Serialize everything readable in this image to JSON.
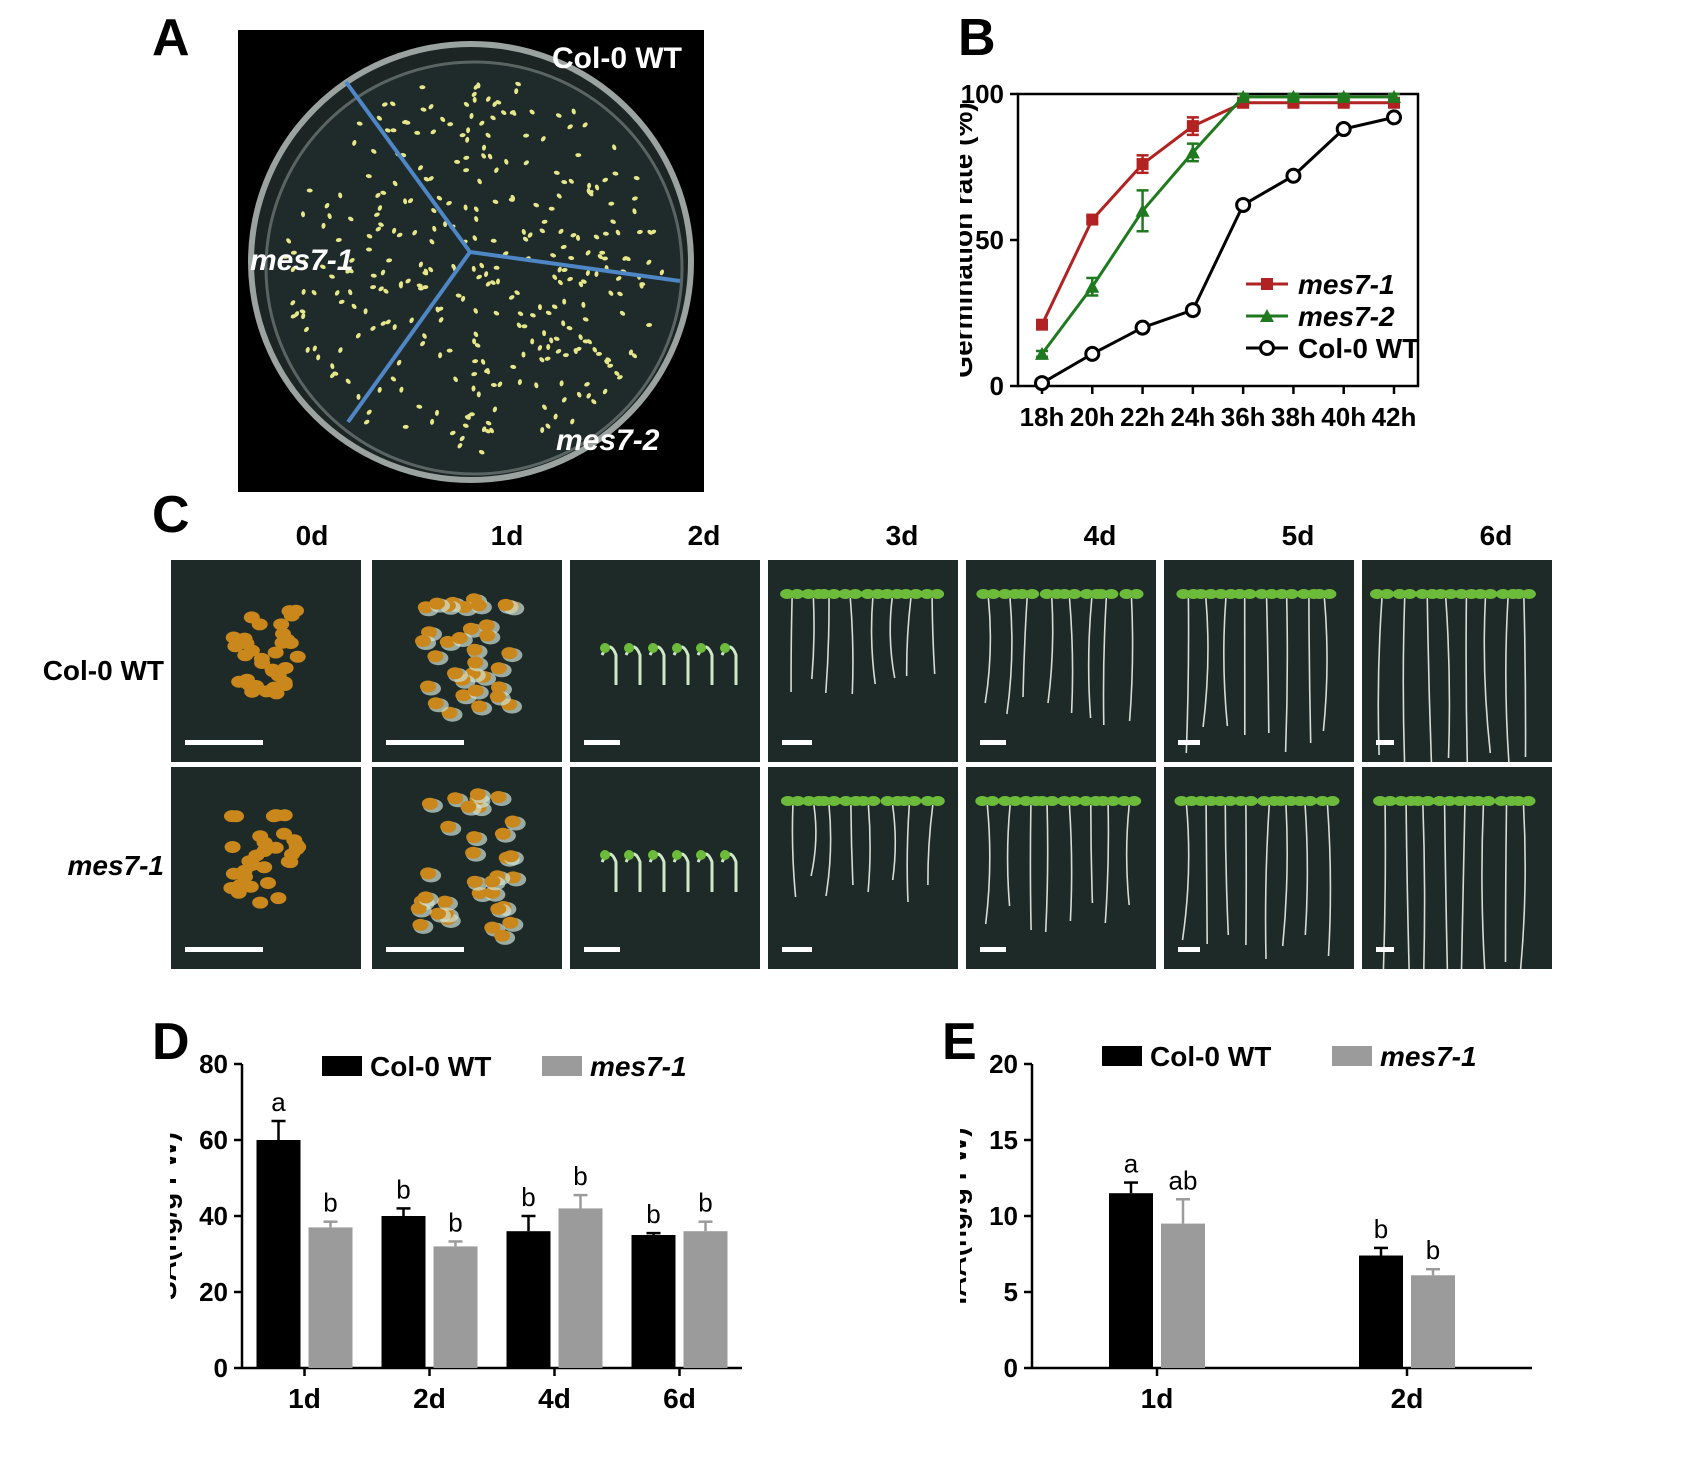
{
  "panels": {
    "a": "A",
    "b": "B",
    "c": "C",
    "d": "D",
    "e": "E"
  },
  "panel_a": {
    "labels": {
      "wt": "Col-0 WT",
      "m1": "mes7-1",
      "m2": "mes7-2"
    },
    "colors": {
      "background": "#000000",
      "plate": "#1f2a2a",
      "divider": "#4f86c6",
      "seedling": "#e6e68a"
    }
  },
  "panel_c": {
    "columns": [
      "0d",
      "1d",
      "2d",
      "3d",
      "4d",
      "5d",
      "6d"
    ],
    "rows": [
      "Col-0 WT",
      "mes7-1"
    ],
    "colors": {
      "background": "#1d2a28",
      "seed": "#c9871c",
      "cotyledon": "#6dbb3a",
      "root": "#d8dcd4",
      "scale_bar": "#ffffff"
    }
  },
  "chart_data": [
    {
      "panel": "B",
      "type": "line",
      "categories": [
        "18h",
        "20h",
        "22h",
        "24h",
        "36h",
        "38h",
        "40h",
        "42h"
      ],
      "ylabel": "Germination rate (%)",
      "ylim": [
        0,
        100
      ],
      "yticks": [
        "0",
        "50",
        "100"
      ],
      "legend_position": "bottom-right",
      "series": [
        {
          "name": "mes7-1",
          "color": "#b22222",
          "marker": "square",
          "values": [
            21,
            57,
            76,
            89,
            97,
            97,
            97,
            97
          ],
          "errors": [
            1,
            1,
            3,
            3,
            1,
            1,
            1,
            1
          ]
        },
        {
          "name": "mes7-2",
          "color": "#1f7a1f",
          "marker": "triangle",
          "values": [
            11,
            34,
            60,
            80,
            99,
            99,
            99,
            99
          ],
          "errors": [
            1,
            3,
            7,
            3,
            1,
            1,
            1,
            1
          ]
        },
        {
          "name": "Col-0 WT",
          "color": "#000000",
          "marker": "circle",
          "values": [
            1,
            11,
            20,
            26,
            62,
            72,
            88,
            92
          ],
          "errors": [
            0,
            1,
            1,
            1,
            1,
            1,
            1,
            1
          ]
        }
      ]
    },
    {
      "panel": "D",
      "type": "bar",
      "categories": [
        "1d",
        "2d",
        "4d",
        "6d"
      ],
      "ylabel": "SA(ng/g FW)",
      "ylim": [
        0,
        80
      ],
      "yticks": [
        "0",
        "20",
        "40",
        "60",
        "80"
      ],
      "legend_position": "top",
      "series": [
        {
          "name": "Col-0 WT",
          "color": "#000000",
          "values": [
            60,
            40,
            36,
            35
          ],
          "errors": [
            5,
            2,
            4,
            0.5
          ],
          "letters": [
            "a",
            "b",
            "b",
            "b"
          ]
        },
        {
          "name": "mes7-1",
          "color": "#9b9b9b",
          "values": [
            37,
            32,
            42,
            36
          ],
          "errors": [
            1.5,
            1.3,
            3.5,
            2.5
          ],
          "letters": [
            "b",
            "b",
            "b",
            "b"
          ]
        }
      ]
    },
    {
      "panel": "E",
      "type": "bar",
      "categories": [
        "1d",
        "2d"
      ],
      "ylabel": "IAA(ng/g FW)",
      "ylim": [
        0,
        20
      ],
      "yticks": [
        "0",
        "5",
        "10",
        "15",
        "20"
      ],
      "legend_position": "top",
      "series": [
        {
          "name": "Col-0 WT",
          "color": "#000000",
          "values": [
            11.5,
            7.4
          ],
          "errors": [
            0.7,
            0.5
          ],
          "letters": [
            "a",
            "b"
          ]
        },
        {
          "name": "mes7-1",
          "color": "#9b9b9b",
          "values": [
            9.5,
            6.1
          ],
          "errors": [
            1.6,
            0.4
          ],
          "letters": [
            "ab",
            "b"
          ]
        }
      ]
    }
  ]
}
